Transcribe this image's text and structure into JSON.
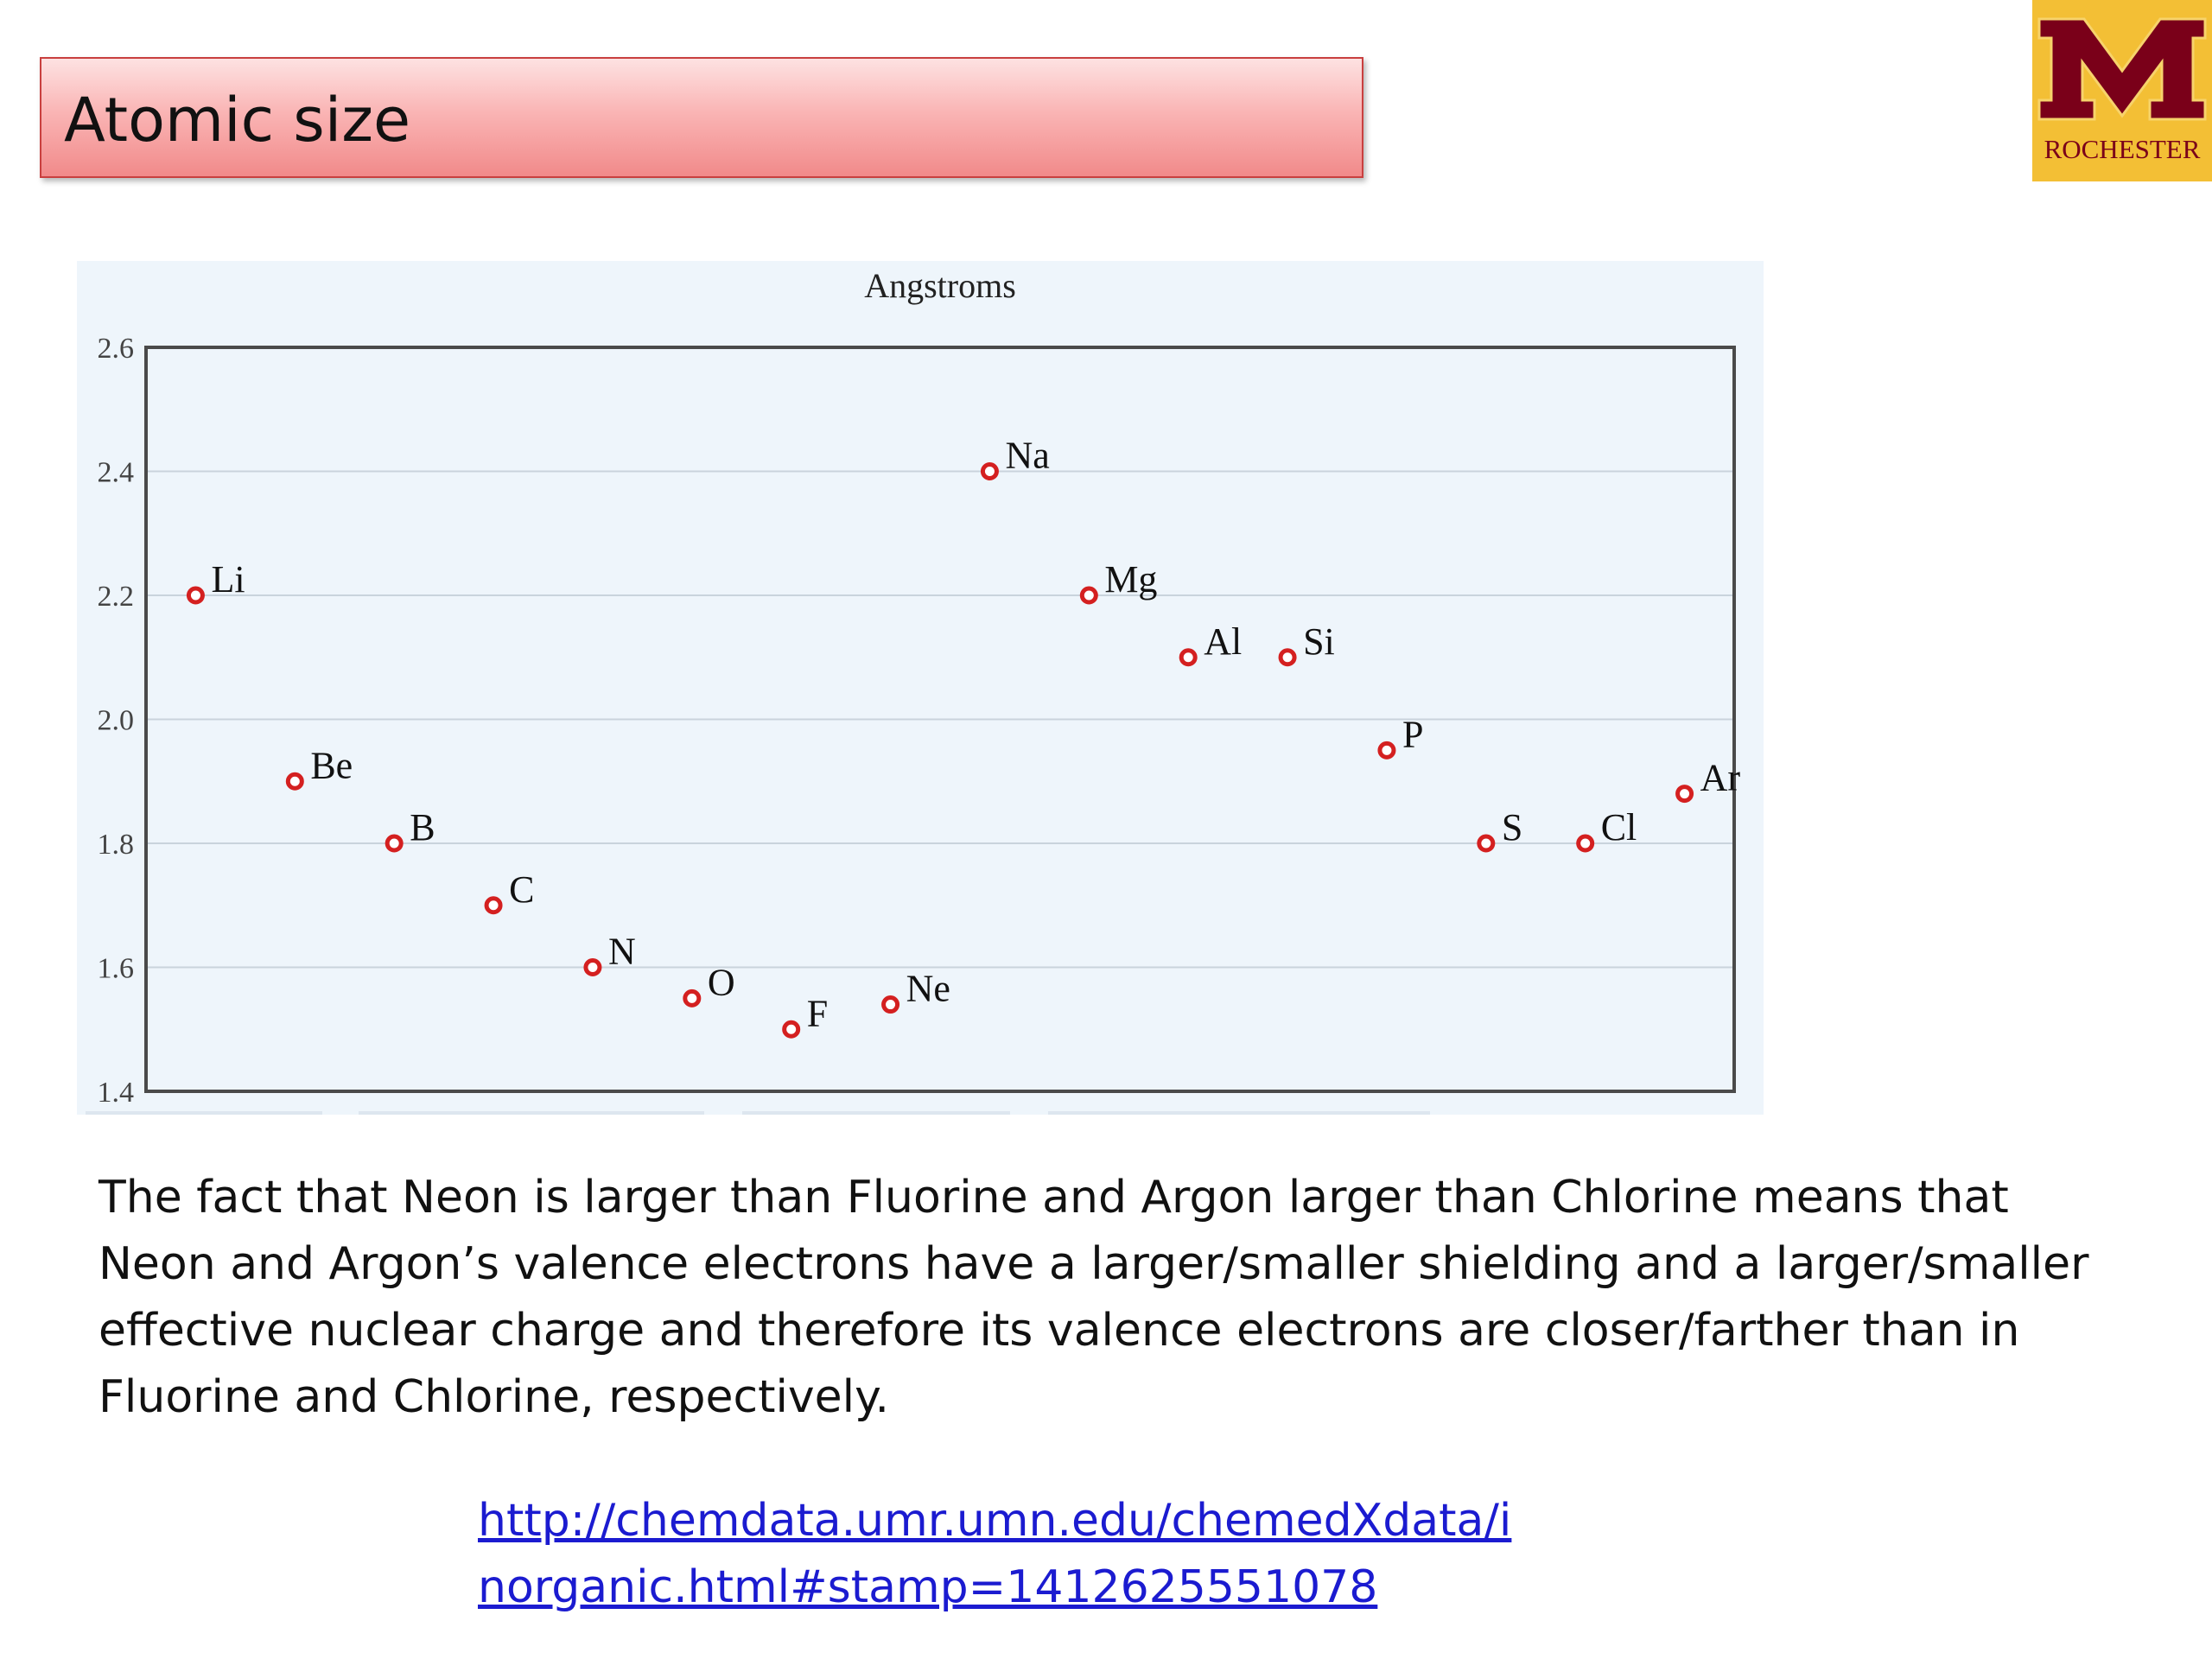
{
  "slide": {
    "title": "Atomic size",
    "logo_text": "ROCHESTER",
    "body_lines": [
      "The fact that Neon is larger than Fluorine and Argon larger than Chlorine means that",
      "Neon and Argon’s valence electrons have a larger/smaller shielding and a larger/smaller",
      "effective nuclear charge and therefore its valence electrons are closer/farther than in",
      "Fluorine and Chlorine, respectively."
    ],
    "link_lines": [
      "http://chemdata.umr.umn.edu/chemedXdata/i",
      "norganic.html#stamp=1412625551078"
    ]
  },
  "colors": {
    "title_border": "#c9403f",
    "logo_bg": "#f3bf35",
    "logo_maroon": "#7a0019",
    "chart_bg": "#eef5fb",
    "marker": "#d42020",
    "link": "#1b1bd0"
  },
  "chart_data": {
    "type": "scatter",
    "title": "Angstroms",
    "ylim": [
      1.4,
      2.6
    ],
    "yticks": [
      "1.4",
      "1.6",
      "1.8",
      "2.0",
      "2.2",
      "2.4",
      "2.6"
    ],
    "grid": true,
    "points": [
      {
        "label": "Li",
        "value": 2.2
      },
      {
        "label": "Be",
        "value": 1.9
      },
      {
        "label": "B",
        "value": 1.8
      },
      {
        "label": "C",
        "value": 1.7
      },
      {
        "label": "N",
        "value": 1.6
      },
      {
        "label": "O",
        "value": 1.55
      },
      {
        "label": "F",
        "value": 1.5
      },
      {
        "label": "Ne",
        "value": 1.54
      },
      {
        "label": "Na",
        "value": 2.4
      },
      {
        "label": "Mg",
        "value": 2.2
      },
      {
        "label": "Al",
        "value": 2.1
      },
      {
        "label": "Si",
        "value": 2.1
      },
      {
        "label": "P",
        "value": 1.95
      },
      {
        "label": "S",
        "value": 1.8
      },
      {
        "label": "Cl",
        "value": 1.8
      },
      {
        "label": "Ar",
        "value": 1.88
      }
    ]
  }
}
